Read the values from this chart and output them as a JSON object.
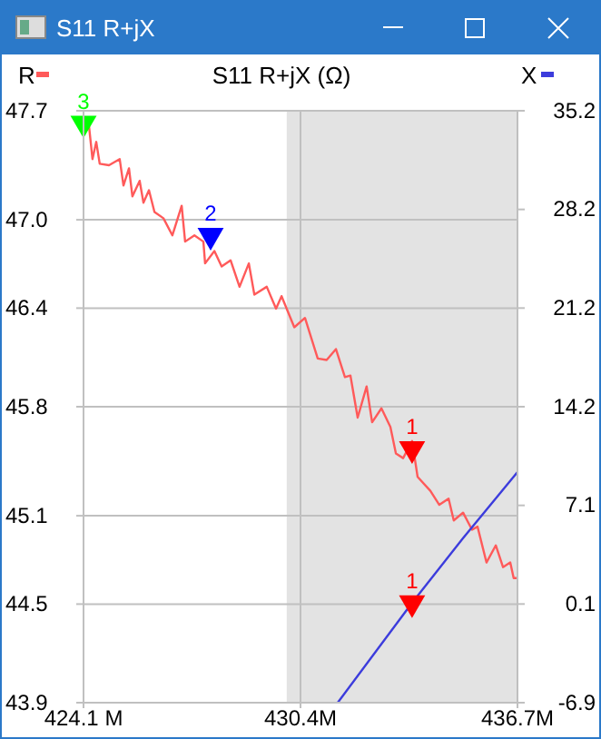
{
  "chart_data": {
    "type": "line",
    "title": "S11 R+jX (Ω)",
    "annotations": [
      "S11 R+jX",
      {
        "text": "3",
        "x": 424.1,
        "y": 47.62
      },
      {
        "text": "2",
        "x": 427.79,
        "y": 46.9
      },
      {
        "text": "1",
        "x": 433.64,
        "y": 45.53
      },
      {
        "text": "1",
        "x": 433.64,
        "y": 44.54
      }
    ],
    "legend": "top",
    "grid": true,
    "xlim": [
      424.1,
      436.7
    ],
    "xticks": [
      {
        "value": 424.1,
        "label": "424.1 M"
      },
      {
        "value": 430.4,
        "label": "430.4M"
      },
      {
        "value": 436.7,
        "label": "436.7M"
      }
    ],
    "ylim": [
      43.9,
      47.7
    ],
    "yticks": [
      43.9,
      {
        "value": 44.533,
        "label": "44.5"
      },
      45.1,
      45.8,
      {
        "value": 46.433,
        "label": "46.4"
      },
      {
        "value": 47.0,
        "label": "47.0"
      },
      47.7
    ],
    "y2lim": [
      -6.9,
      35.2
    ],
    "y2ticks": [
      -6.9,
      {
        "value": 0.117,
        "label": "0.1"
      },
      {
        "value": 7.133,
        "label": "7.1"
      },
      {
        "value": 14.15,
        "label": "14.2"
      },
      {
        "value": 21.167,
        "label": "21.2"
      },
      {
        "value": 28.183,
        "label": "28.2"
      },
      35.2
    ],
    "bands": [
      {
        "axis": "x",
        "from": 430.0,
        "to": 436.7,
        "color": "#e3e3e3"
      }
    ],
    "series": [
      {
        "name": "R",
        "color": "#ff5a5a",
        "x": [
          424.1,
          424.26,
          424.36,
          424.47,
          424.57,
          424.84,
          425.15,
          425.26,
          425.42,
          425.52,
          425.73,
          425.84,
          426.0,
          426.16,
          426.42,
          426.68,
          426.95,
          427.05,
          427.32,
          427.58,
          427.63,
          427.9,
          428.11,
          428.37,
          428.63,
          428.9,
          429.06,
          429.42,
          429.69,
          429.85,
          430.22,
          430.53,
          430.9,
          431.16,
          431.43,
          431.69,
          431.85,
          432.06,
          432.32,
          432.48,
          432.75,
          433.01,
          433.17,
          433.38,
          433.64,
          433.8,
          434.17,
          434.43,
          434.7,
          434.85,
          435.12,
          435.38,
          435.54,
          435.8,
          436.07,
          436.28,
          436.49,
          436.59,
          436.7
        ],
        "values": [
          47.62,
          47.6,
          47.39,
          47.5,
          47.36,
          47.35,
          47.39,
          47.22,
          47.33,
          47.15,
          47.25,
          47.11,
          47.19,
          47.05,
          47.01,
          46.9,
          47.09,
          46.86,
          46.9,
          46.86,
          46.72,
          46.8,
          46.7,
          46.74,
          46.57,
          46.72,
          46.52,
          46.57,
          46.43,
          46.51,
          46.31,
          46.37,
          46.11,
          46.1,
          46.17,
          45.99,
          46.0,
          45.73,
          45.93,
          45.7,
          45.79,
          45.67,
          45.5,
          45.47,
          45.58,
          45.35,
          45.26,
          45.17,
          45.21,
          45.07,
          45.12,
          45.01,
          45.03,
          44.8,
          44.91,
          44.77,
          44.8,
          44.7,
          44.7
        ]
      },
      {
        "name": "X",
        "axis": "y2",
        "color": "#3c3cdc",
        "x": [
          431.48,
          433.64,
          435.12,
          436.7
        ],
        "values": [
          -6.9,
          0.2,
          4.8,
          9.5
        ]
      },
      {
        "type": "scatter",
        "marker": "triangle",
        "x": [
          424.1,
          427.79,
          433.64
        ],
        "values": [
          47.62,
          46.9,
          45.53
        ],
        "colors": [
          "#00ff00",
          "#0000ff",
          "#ff0000"
        ]
      },
      {
        "type": "scatter",
        "marker": "triangle",
        "axis": "y2",
        "x": [
          433.64
        ],
        "values": [
          0.2
        ],
        "colors": [
          "#ff0000"
        ]
      }
    ]
  }
}
